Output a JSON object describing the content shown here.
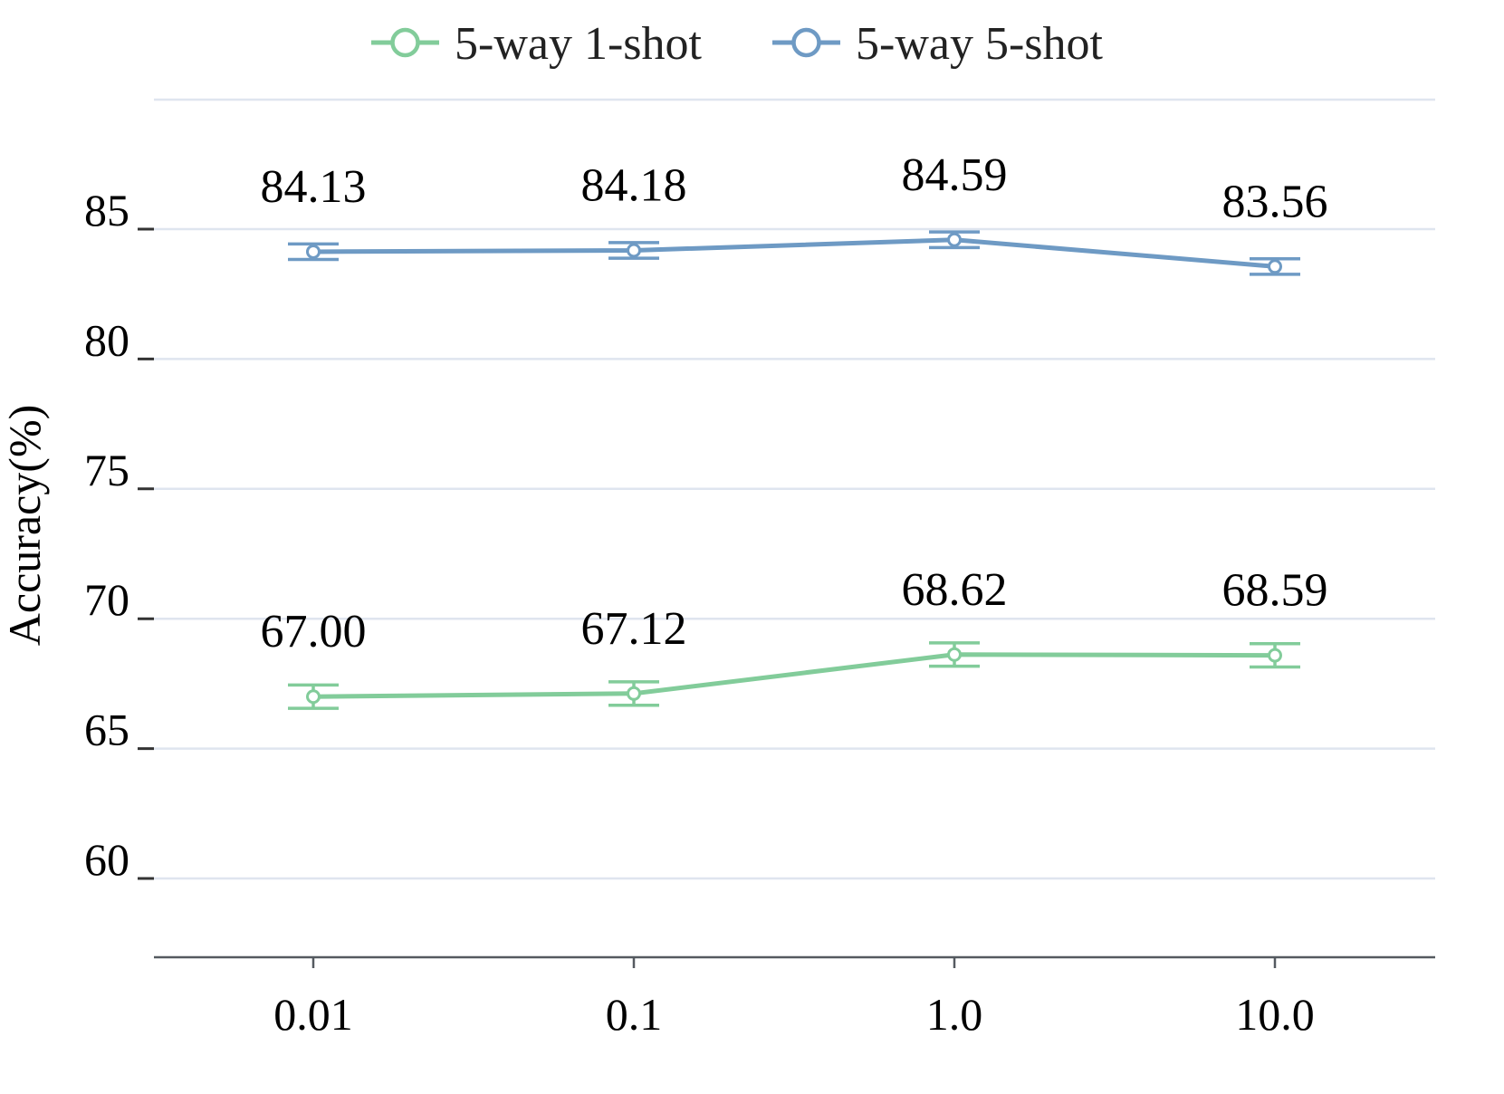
{
  "chart_data": {
    "type": "line",
    "categories": [
      "0.01",
      "0.1",
      "1.0",
      "10.0"
    ],
    "ylabel": "Accuracy(%)",
    "xlabel": "",
    "ylim": [
      56.5,
      90
    ],
    "yticks": [
      60,
      65,
      70,
      75,
      80,
      85
    ],
    "grid": true,
    "legend_position": "top-center",
    "series": [
      {
        "name": "5-way 1-shot",
        "color": "#82cc9a",
        "values": [
          67.0,
          67.12,
          68.62,
          68.59
        ],
        "labels": [
          "67.00",
          "67.12",
          "68.62",
          "68.59"
        ],
        "error": [
          0.45,
          0.45,
          0.45,
          0.45
        ]
      },
      {
        "name": "5-way 5-shot",
        "color": "#6e9ac4",
        "values": [
          84.13,
          84.18,
          84.59,
          83.56
        ],
        "labels": [
          "84.13",
          "84.18",
          "84.59",
          "83.56"
        ],
        "error": [
          0.3,
          0.3,
          0.3,
          0.3
        ]
      }
    ]
  }
}
